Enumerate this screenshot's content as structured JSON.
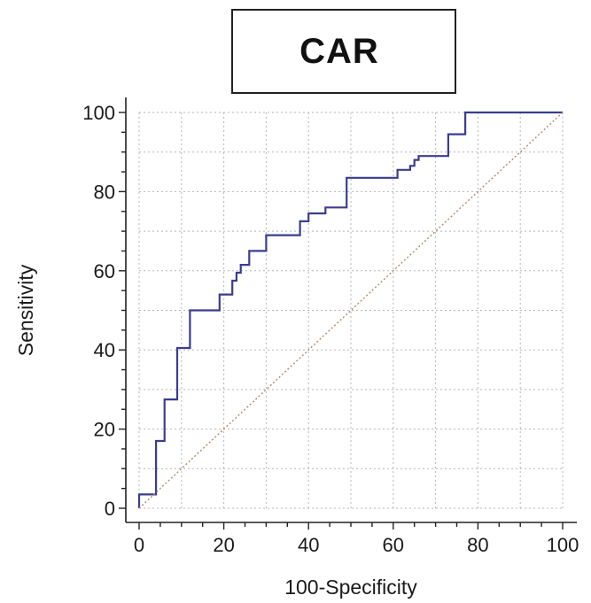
{
  "chart_data": {
    "type": "line",
    "title": "CAR",
    "xlabel": "100-Specificity",
    "ylabel": "Sensitivity",
    "xlim": [
      0,
      100
    ],
    "ylim": [
      0,
      100
    ],
    "xticks": [
      "0",
      "20",
      "40",
      "60",
      "80",
      "100"
    ],
    "yticks": [
      "0",
      "20",
      "40",
      "60",
      "80",
      "100"
    ],
    "grid": true,
    "series": [
      {
        "color": "#3a3d8f",
        "x": [
          0,
          0,
          4,
          4,
          6,
          6,
          9,
          9,
          12,
          12,
          19,
          19,
          22,
          22,
          23,
          23,
          24,
          24,
          26,
          26,
          30,
          30,
          38,
          38,
          40,
          40,
          44,
          44,
          49,
          49,
          61,
          61,
          64,
          64,
          65,
          65,
          66,
          66,
          73,
          73,
          77,
          77,
          100
        ],
        "y": [
          0,
          3.5,
          3.5,
          17,
          17,
          27.5,
          27.5,
          40.5,
          40.5,
          50,
          50,
          54,
          54,
          57.5,
          57.5,
          59.5,
          59.5,
          61.5,
          61.5,
          65,
          65,
          69,
          69,
          72.5,
          72.5,
          74.5,
          74.5,
          76,
          76,
          83.5,
          83.5,
          85.5,
          85.5,
          86.5,
          86.5,
          88,
          88,
          89,
          89,
          94.5,
          94.5,
          100,
          100
        ]
      },
      {
        "color": "#b08a6a",
        "style": "dotted",
        "x": [
          0,
          100
        ],
        "y": [
          0,
          100
        ]
      }
    ]
  }
}
